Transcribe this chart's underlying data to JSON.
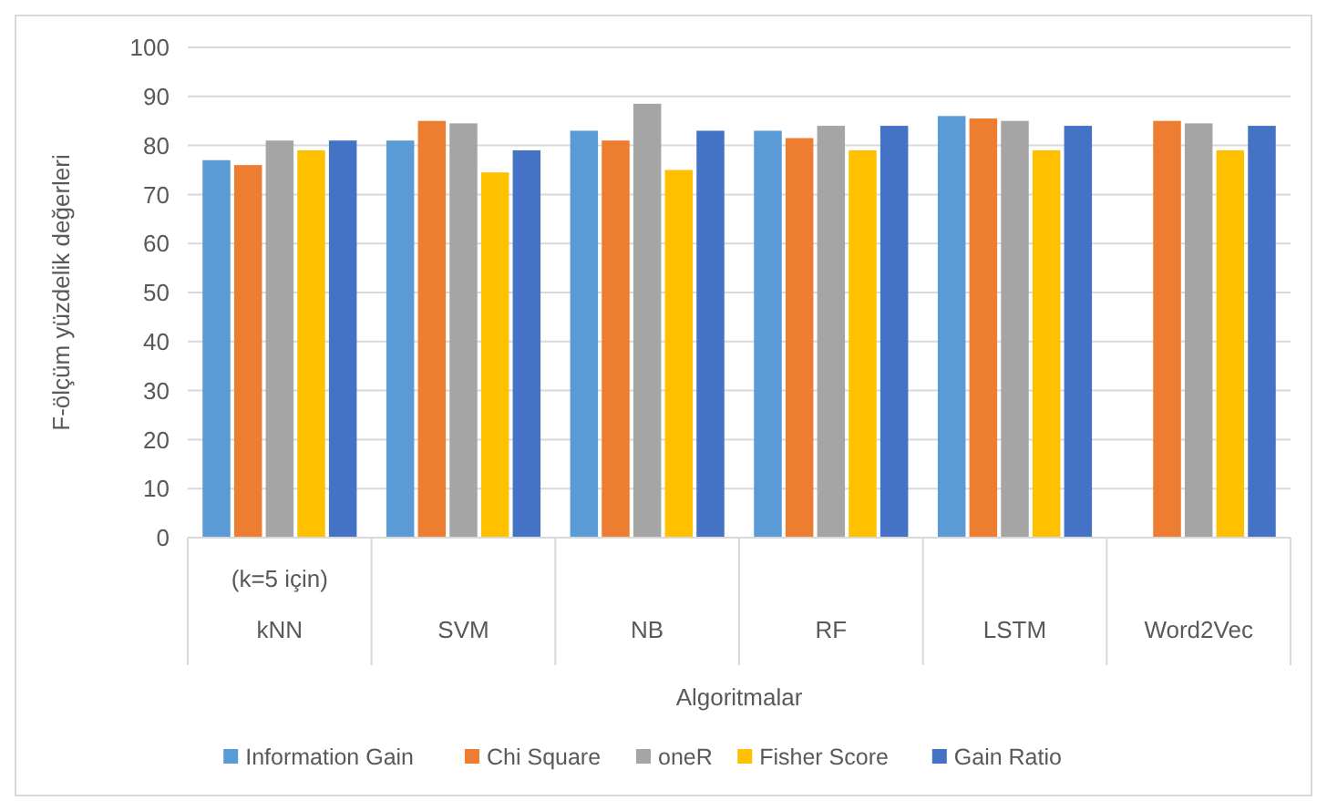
{
  "chart_data": {
    "type": "bar",
    "xlabel": "Algoritmalar",
    "ylabel": "F-ölçüm yüzdelik değerleri",
    "categories": [
      "kNN",
      "SVM",
      "NB",
      "RF",
      "LSTM",
      "Word2Vec"
    ],
    "series": [
      {
        "name": "Information Gain",
        "color": "#5b9bd5",
        "values": [
          77,
          81,
          83,
          83,
          86,
          null
        ]
      },
      {
        "name": "Chi Square",
        "color": "#ed7d31",
        "values": [
          76,
          85,
          81,
          81.5,
          85.5,
          85
        ]
      },
      {
        "name": "oneR",
        "color": "#a5a5a5",
        "values": [
          81,
          84.5,
          88.5,
          84,
          85,
          84.5
        ]
      },
      {
        "name": "Fisher Score",
        "color": "#ffc000",
        "values": [
          79,
          74.5,
          75,
          79,
          79,
          79
        ]
      },
      {
        "name": "Gain Ratio",
        "color": "#4472c4",
        "values": [
          81,
          79,
          83,
          84,
          84,
          84
        ]
      }
    ],
    "annotations": [
      "(k=5 için)"
    ],
    "ylim": [
      0,
      100
    ],
    "yticks": [
      0,
      10,
      20,
      30,
      40,
      50,
      60,
      70,
      80,
      90,
      100
    ],
    "grid": "y",
    "legend": "bottom"
  }
}
